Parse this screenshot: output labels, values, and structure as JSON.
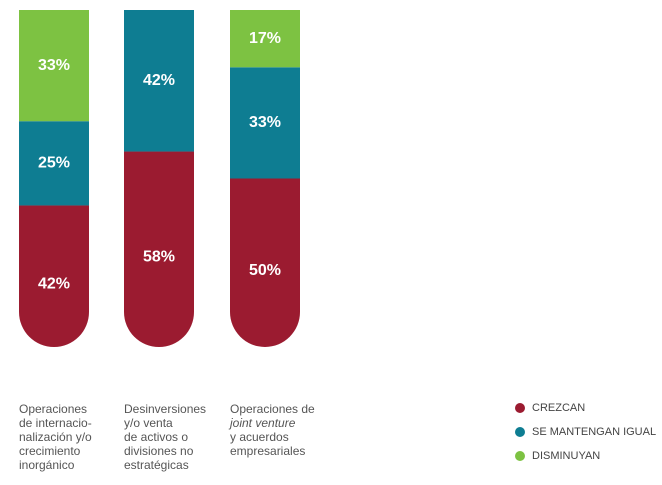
{
  "chart_data": {
    "type": "bar",
    "stacked": true,
    "categories": [
      [
        "Operaciones",
        "de internacio-",
        "nalización y/o",
        "crecimiento",
        "inorgánico"
      ],
      [
        "Desinversiones",
        "y/o venta",
        "de activos o",
        "divisiones no",
        "estratégicas"
      ],
      [
        "Operaciones de",
        "joint venture",
        "y acuerdos",
        "empresariales"
      ]
    ],
    "ylim": [
      0,
      100
    ],
    "series": [
      {
        "name": "CREZCAN",
        "color": "#9b1b30",
        "values": [
          42,
          58,
          50
        ],
        "value_labels": [
          "42%",
          "58%",
          "50%"
        ]
      },
      {
        "name": "SE MANTENGAN IGUAL",
        "color": "#0e7d92",
        "values": [
          25,
          42,
          33
        ],
        "value_labels": [
          "25%",
          "42%",
          "33%"
        ]
      },
      {
        "name": "DISMINUYAN",
        "color": "#7dc242",
        "values": [
          33,
          0,
          17
        ],
        "value_labels": [
          "33%",
          null,
          "17%"
        ]
      }
    ],
    "legend": "bottom-right"
  }
}
